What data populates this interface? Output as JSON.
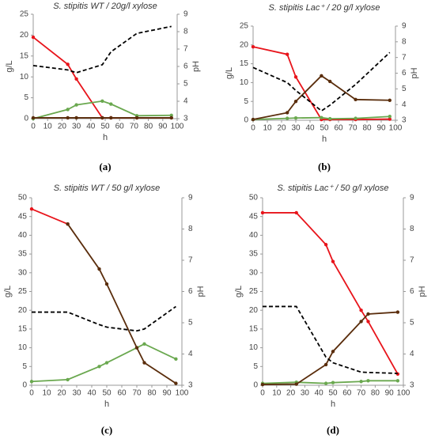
{
  "chart_data": [
    {
      "type": "line",
      "title": "S. stipitis WT / 20g/l xylose",
      "caption": "(a)",
      "xlabel": "h",
      "ylabel": "g/L",
      "y2label": "pH",
      "x": [
        0,
        24,
        30,
        48,
        54,
        72,
        96
      ],
      "xlim": [
        0,
        100
      ],
      "xticks": [
        0,
        10,
        20,
        30,
        40,
        50,
        60,
        70,
        80,
        90,
        100
      ],
      "ylim": [
        0,
        25
      ],
      "yticks": [
        0,
        5,
        10,
        15,
        20,
        25
      ],
      "y2lim": [
        3,
        9
      ],
      "y2ticks": [
        3,
        4,
        5,
        6,
        7,
        8,
        9
      ],
      "series": [
        {
          "color": "#e8141b",
          "values": [
            19.5,
            13,
            9.5,
            0.2,
            0.2,
            0.2,
            0.2
          ]
        },
        {
          "color": "#6aa84f",
          "values": [
            0,
            2.2,
            3.3,
            4.2,
            3.5,
            0.7,
            0.8
          ]
        },
        {
          "color": "#5a2d0c",
          "values": [
            0.2,
            0.2,
            0.2,
            0.2,
            0.2,
            0.2,
            0.2
          ]
        },
        {
          "color": "#000000",
          "dashed": true,
          "axis": "y2",
          "values": [
            6.05,
            5.8,
            5.64,
            6.1,
            6.84,
            7.9,
            8.3
          ]
        }
      ]
    },
    {
      "type": "line",
      "title": "S. stipitis Lac⁺ / 20 g/l xylose",
      "caption": "(b)",
      "xlabel": "h",
      "ylabel": "g/L",
      "y2label": "pH",
      "x": [
        0,
        24,
        30,
        48,
        54,
        72,
        96
      ],
      "xlim": [
        0,
        100
      ],
      "xticks": [
        0,
        10,
        20,
        30,
        40,
        50,
        60,
        70,
        80,
        90,
        100
      ],
      "ylim": [
        0,
        25
      ],
      "yticks": [
        0,
        5,
        10,
        15,
        20,
        25
      ],
      "y2lim": [
        3,
        9
      ],
      "y2ticks": [
        3,
        4,
        5,
        6,
        7,
        8,
        9
      ],
      "series": [
        {
          "color": "#e8141b",
          "values": [
            19.5,
            17.5,
            11.5,
            0.2,
            0.2,
            0.2,
            0.3
          ]
        },
        {
          "color": "#6aa84f",
          "values": [
            0.2,
            0.5,
            0.6,
            0.7,
            0.4,
            0.5,
            1
          ]
        },
        {
          "color": "#5a2d0c",
          "values": [
            0.2,
            2,
            5,
            11.8,
            10.3,
            5.5,
            5.3
          ]
        },
        {
          "color": "#000000",
          "dashed": true,
          "axis": "y2",
          "values": [
            6.36,
            5.4,
            4.9,
            3.6,
            3.96,
            5.28,
            7.32
          ]
        }
      ]
    },
    {
      "type": "line",
      "title": "S. stipitis WT / 50 g/l xylose",
      "caption": "(c)",
      "xlabel": "h",
      "ylabel": "g/L",
      "y2label": "pH",
      "x": [
        0,
        24,
        45,
        50,
        70,
        75,
        96
      ],
      "xlim": [
        0,
        100
      ],
      "xticks": [
        0,
        10,
        20,
        30,
        40,
        50,
        60,
        70,
        80,
        90,
        100
      ],
      "ylim": [
        0,
        50
      ],
      "yticks": [
        0,
        5,
        10,
        15,
        20,
        25,
        30,
        35,
        40,
        45,
        50
      ],
      "y2lim": [
        3,
        9
      ],
      "y2ticks": [
        3,
        4,
        5,
        6,
        7,
        8,
        9
      ],
      "series": [
        {
          "color": "#e8141b",
          "values": [
            47,
            43,
            null,
            null,
            null,
            null,
            null
          ]
        },
        {
          "color": "#6aa84f",
          "values": [
            1,
            1.5,
            5,
            6,
            10,
            11,
            7
          ]
        },
        {
          "color": "#5a2d0c",
          "values": [
            null,
            43,
            31,
            27,
            10,
            6,
            0.5
          ]
        },
        {
          "color": "#000000",
          "dashed": true,
          "axis": "y2",
          "values": [
            5.34,
            5.34,
            4.94,
            4.86,
            4.74,
            4.8,
            5.52
          ]
        }
      ]
    },
    {
      "type": "line",
      "title": "S. stipitis Lac⁺ / 50 g/l xylose",
      "caption": "(d)",
      "xlabel": "h",
      "ylabel": "g/L",
      "y2label": "pH",
      "x": [
        0,
        24,
        45,
        50,
        70,
        75,
        96
      ],
      "xlim": [
        0,
        100
      ],
      "xticks": [
        0,
        10,
        20,
        30,
        40,
        50,
        60,
        70,
        80,
        90,
        100
      ],
      "ylim": [
        0,
        50
      ],
      "yticks": [
        0,
        5,
        10,
        15,
        20,
        25,
        30,
        35,
        40,
        45,
        50
      ],
      "y2lim": [
        3,
        9
      ],
      "y2ticks": [
        3,
        4,
        5,
        6,
        7,
        8,
        9
      ],
      "series": [
        {
          "color": "#e8141b",
          "values": [
            46,
            46,
            37.5,
            33,
            20,
            17,
            3
          ]
        },
        {
          "color": "#6aa84f",
          "values": [
            0.5,
            0.8,
            0.5,
            0.7,
            1,
            1.2,
            1.2
          ]
        },
        {
          "color": "#5a2d0c",
          "values": [
            0.2,
            0.3,
            5.5,
            9,
            17,
            19,
            19.5
          ]
        },
        {
          "color": "#000000",
          "dashed": true,
          "axis": "y2",
          "values": [
            5.52,
            5.52,
            3.9,
            3.72,
            3.42,
            3.41,
            3.38
          ]
        }
      ]
    }
  ]
}
